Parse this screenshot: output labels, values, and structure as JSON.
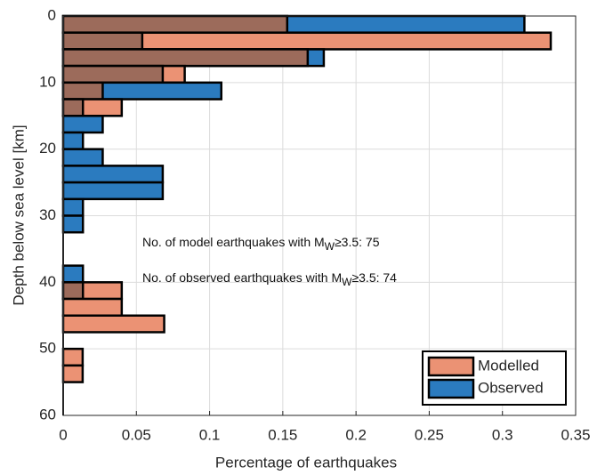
{
  "chart_data": {
    "type": "horizontal-histogram",
    "xlabel": "Percentage of earthquakes",
    "ylabel": "Depth below sea level [km]",
    "bins": [
      0,
      2.5,
      5,
      7.5,
      10,
      12.5,
      15,
      17.5,
      20,
      22.5,
      25,
      27.5,
      30,
      32.5,
      35,
      37.5,
      40,
      42.5,
      45,
      47.5,
      50,
      52.5,
      55,
      57.5,
      60
    ],
    "series": [
      {
        "name": "Modelled",
        "color": "#eb9274",
        "values": [
          0.153,
          0.333,
          0.167,
          0.083,
          0.027,
          0.04,
          0,
          0,
          0,
          0,
          0,
          0,
          0,
          0,
          0,
          0,
          0.04,
          0.04,
          0.069,
          0,
          0.0133,
          0.0133,
          0,
          0
        ]
      },
      {
        "name": "Observed",
        "color": "#2b7bbf",
        "values": [
          0.315,
          0.054,
          0.178,
          0.068,
          0.108,
          0.0135,
          0.027,
          0.0135,
          0.027,
          0.068,
          0.068,
          0.0135,
          0.0135,
          0,
          0,
          0.0135,
          0.0135,
          0,
          0,
          0,
          0,
          0,
          0,
          0
        ]
      }
    ],
    "overlap_color": "#9c6b5b",
    "xlim": [
      0,
      0.35
    ],
    "xticks": [
      0,
      0.05,
      0.1,
      0.15,
      0.2,
      0.25,
      0.3,
      0.35
    ],
    "ylim": [
      0,
      60
    ],
    "yticks": [
      0,
      10,
      20,
      30,
      40,
      50,
      60
    ],
    "y_reversed": true,
    "grid": true,
    "legend": "lower right",
    "annotations": [
      {
        "text": "No. of model earthquakes with M",
        "subscript": "W",
        "suffix": "≥3.5: 75"
      },
      {
        "text": "No. of observed earthquakes with M",
        "subscript": "W",
        "suffix": "≥3.5: 74"
      }
    ]
  }
}
